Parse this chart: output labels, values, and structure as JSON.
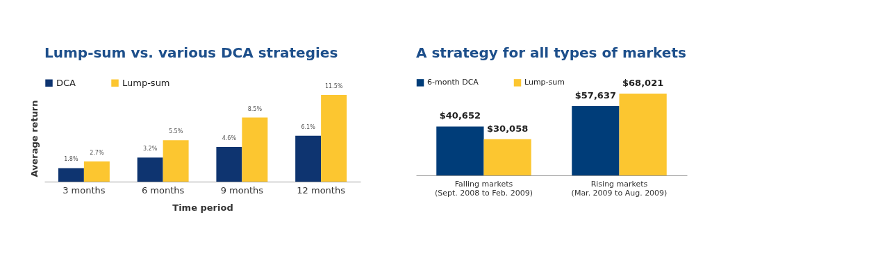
{
  "chart_data": [
    {
      "type": "bar",
      "title": "Lump-sum vs. various DCA strategies",
      "xlabel": "Time period",
      "ylabel": "Average return",
      "categories": [
        "3 months",
        "6 months",
        "9 months",
        "12 months"
      ],
      "series": [
        {
          "name": "DCA",
          "color": "#0e3470",
          "values": [
            1.8,
            3.2,
            4.6,
            6.1
          ],
          "value_labels": [
            "1.8%",
            "3.2%",
            "4.6%",
            "6.1%"
          ]
        },
        {
          "name": "Lump-sum",
          "color": "#fcc630",
          "values": [
            2.7,
            5.5,
            8.5,
            11.5
          ],
          "value_labels": [
            "2.7%",
            "5.5%",
            "8.5%",
            "11.5%"
          ]
        }
      ],
      "legend": "top",
      "tick_labels": "x"
    },
    {
      "type": "bar",
      "title": "A strategy for all types of markets",
      "categories": [
        "Falling markets\n(Sept. 2008 to Feb. 2009)",
        "Rising markets\n(Mar. 2009 to Aug. 2009)"
      ],
      "series": [
        {
          "name": "6-month DCA",
          "color": "#003d79",
          "values": [
            40652,
            57637
          ],
          "value_labels": [
            "$40,652",
            "$57,637"
          ]
        },
        {
          "name": "Lump-sum",
          "color": "#fcc630",
          "values": [
            30058,
            68021
          ],
          "value_labels": [
            "$30,058",
            "$68,021"
          ]
        }
      ],
      "legend": "top left",
      "tick_labels": "x"
    }
  ]
}
